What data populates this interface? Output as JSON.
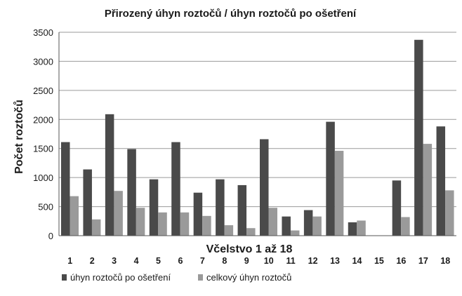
{
  "chart_data": {
    "type": "bar",
    "title": "Přirozený úhyn roztočů / úhyn roztočů po ošetření",
    "xlabel": "Včelstvo 1 až 18",
    "ylabel": "Počet roztočů",
    "categories": [
      "1",
      "2",
      "3",
      "4",
      "5",
      "6",
      "7",
      "8",
      "9",
      "10",
      "11",
      "12",
      "13",
      "14",
      "15",
      "16",
      "17",
      "18"
    ],
    "ylim": [
      0,
      3500
    ],
    "yticks": [
      "0",
      "500",
      "1000",
      "1500",
      "2000",
      "2500",
      "3000",
      "3500"
    ],
    "grid": true,
    "legend_position": "bottom-left",
    "series": [
      {
        "name": "úhyn roztočů po ošetření",
        "color": "#4a4a4a",
        "values": [
          1610,
          1140,
          2090,
          1490,
          970,
          1610,
          740,
          970,
          870,
          1660,
          330,
          440,
          1960,
          230,
          0,
          950,
          3370,
          1880
        ]
      },
      {
        "name": "celkový úhyn roztočů",
        "color": "#9a9a9a",
        "values": [
          680,
          280,
          770,
          480,
          400,
          400,
          340,
          180,
          130,
          480,
          90,
          330,
          1460,
          260,
          0,
          320,
          1580,
          780
        ]
      }
    ]
  }
}
